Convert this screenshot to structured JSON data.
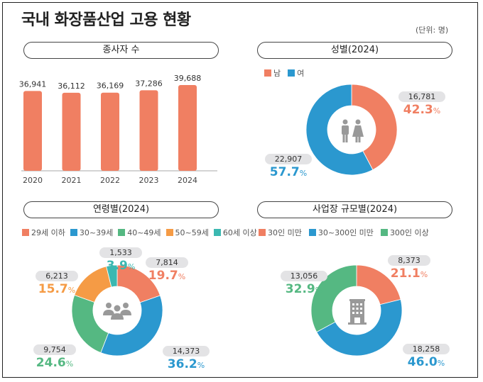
{
  "header": {
    "title": "국내 화장품산업 고용 현황",
    "unit": "(단위: 명)"
  },
  "colors": {
    "orange_red": "#f07f62",
    "blue": "#2b98cf",
    "green": "#55b882",
    "orange": "#f59b45",
    "teal": "#3bb8b1",
    "bar": "#f07f62",
    "axis": "#aaaaaa",
    "icon": "#999999"
  },
  "chart_data": [
    {
      "id": "employees",
      "type": "bar",
      "title": "종사자 수",
      "categories": [
        "2020",
        "2021",
        "2022",
        "2023",
        "2024"
      ],
      "values": [
        36941,
        36112,
        36169,
        37286,
        39688
      ],
      "value_labels": [
        "36,941",
        "36,112",
        "36,169",
        "37,286",
        "39,688"
      ],
      "xlabel": "",
      "ylabel": "",
      "grid": false
    },
    {
      "id": "gender",
      "type": "pie",
      "title": "성별(2024)",
      "center_icon": "man-woman-icon",
      "legend": [
        "남",
        "여"
      ],
      "legend_placement": "top-left",
      "slices": [
        {
          "name": "남",
          "value": 16781,
          "value_label": "16,781",
          "percent": "42.3",
          "color": "#f07f62"
        },
        {
          "name": "여",
          "value": 22907,
          "value_label": "22,907",
          "percent": "57.7",
          "color": "#2b98cf"
        }
      ]
    },
    {
      "id": "age",
      "type": "pie",
      "title": "연령별(2024)",
      "center_icon": "group-icon",
      "legend": [
        "29세 이하",
        "30~39세",
        "40~49세",
        "50~59세",
        "60세 이상"
      ],
      "legend_placement": "top-left",
      "slices": [
        {
          "name": "29세 이하",
          "value": 7814,
          "value_label": "7,814",
          "percent": "19.7",
          "color": "#f07f62"
        },
        {
          "name": "30~39세",
          "value": 14373,
          "value_label": "14,373",
          "percent": "36.2",
          "color": "#2b98cf"
        },
        {
          "name": "40~49세",
          "value": 9754,
          "value_label": "9,754",
          "percent": "24.6",
          "color": "#55b882"
        },
        {
          "name": "50~59세",
          "value": 6213,
          "value_label": "6,213",
          "percent": "15.7",
          "color": "#f59b45"
        },
        {
          "name": "60세 이상",
          "value": 1533,
          "value_label": "1,533",
          "percent": "3.9",
          "color": "#3bb8b1"
        }
      ]
    },
    {
      "id": "size",
      "type": "pie",
      "title": "사업장 규모별(2024)",
      "center_icon": "building-icon",
      "legend": [
        "30인 미만",
        "30~300인 미만",
        "300인 이상"
      ],
      "legend_placement": "top-left",
      "slices": [
        {
          "name": "30인 미만",
          "value": 8373,
          "value_label": "8,373",
          "percent": "21.1",
          "color": "#f07f62"
        },
        {
          "name": "30~300인 미만",
          "value": 18258,
          "value_label": "18,258",
          "percent": "46.0",
          "color": "#2b98cf"
        },
        {
          "name": "300인 이상",
          "value": 13056,
          "value_label": "13,056",
          "percent": "32.9",
          "color": "#55b882"
        }
      ]
    }
  ],
  "percent_sign": "%"
}
